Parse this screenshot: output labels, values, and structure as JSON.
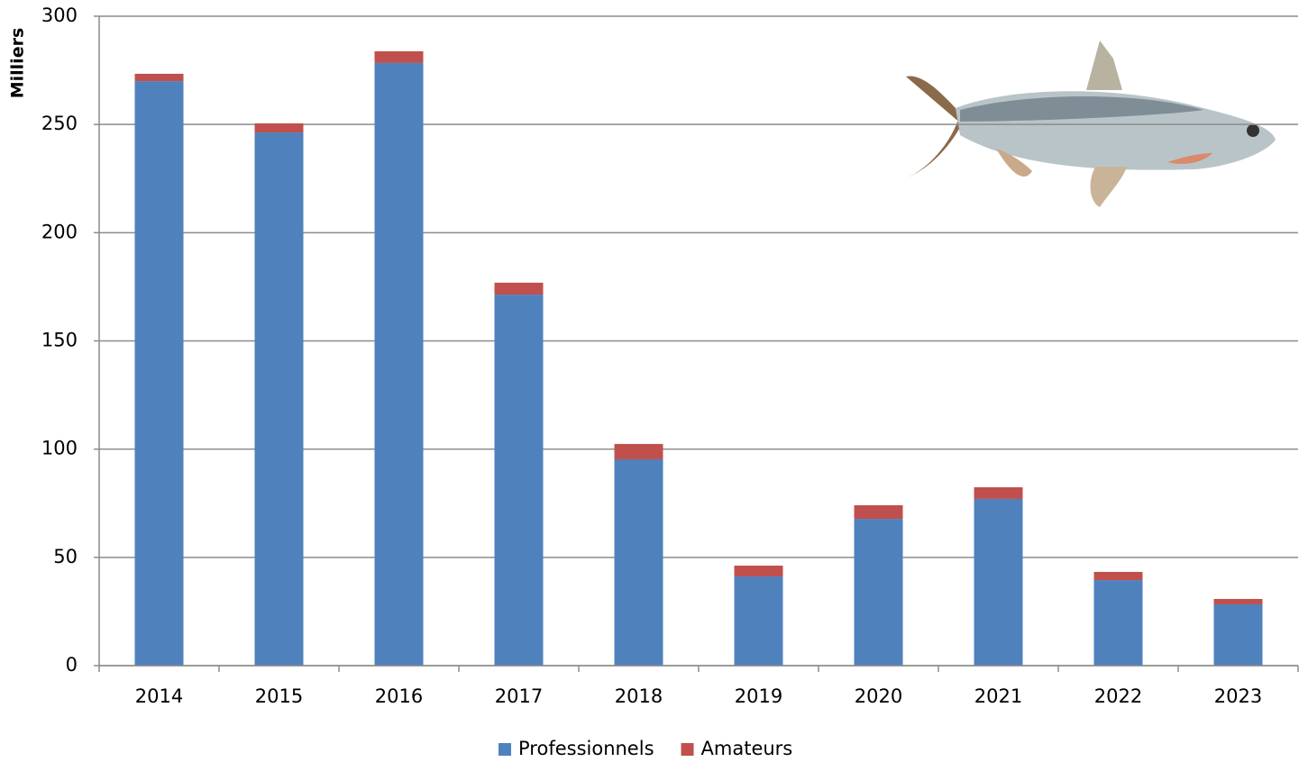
{
  "chart_data": {
    "type": "stacked_bar",
    "y_label": "Milliers",
    "categories": [
      "2014",
      "2015",
      "2016",
      "2017",
      "2018",
      "2019",
      "2020",
      "2021",
      "2022",
      "2023"
    ],
    "series": [
      {
        "name": "Professionnels",
        "color": "#4f81bd",
        "values": [
          270.0,
          246.3,
          278.4,
          171.4,
          95.3,
          41.2,
          67.8,
          77.0,
          39.5,
          28.3
        ]
      },
      {
        "name": "Amateurs",
        "color": "#c0504d",
        "values": [
          3.4,
          4.2,
          5.4,
          5.5,
          7.1,
          5.0,
          6.3,
          5.4,
          3.8,
          2.5
        ]
      }
    ],
    "ylim": [
      0,
      300
    ],
    "yticks": [
      0,
      50,
      100,
      150,
      200,
      250,
      300
    ],
    "grid": true,
    "legend": "bottom"
  }
}
